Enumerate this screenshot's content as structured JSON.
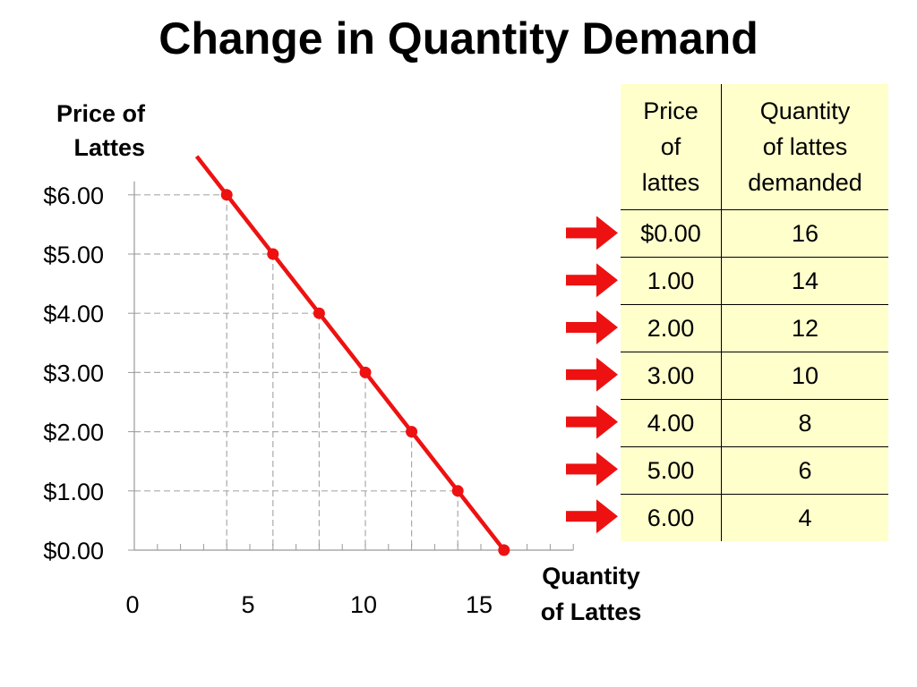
{
  "title": "Change in Quantity Demand",
  "chart_data": {
    "type": "line",
    "ylabel_lines": [
      "Price of",
      "Lattes"
    ],
    "xlabel_lines": [
      "Quantity",
      "of Lattes"
    ],
    "y_ticks": [
      "$0.00",
      "$1.00",
      "$2.00",
      "$3.00",
      "$4.00",
      "$5.00",
      "$6.00"
    ],
    "x_ticks": [
      "0",
      "5",
      "10",
      "15"
    ],
    "xlim": [
      0,
      19
    ],
    "ylim": [
      0,
      6
    ],
    "grid": "dashed guide lines to each point",
    "series": [
      {
        "color": "#ee1111",
        "points": [
          {
            "x": 4,
            "y": 6
          },
          {
            "x": 6,
            "y": 5
          },
          {
            "x": 8,
            "y": 4
          },
          {
            "x": 10,
            "y": 3
          },
          {
            "x": 12,
            "y": 2
          },
          {
            "x": 14,
            "y": 1
          },
          {
            "x": 16,
            "y": 0
          }
        ]
      }
    ]
  },
  "table": {
    "headers": [
      [
        "Price",
        "of",
        "lattes"
      ],
      [
        "Quantity",
        "of lattes",
        "demanded"
      ]
    ],
    "rows": [
      [
        "$0.00",
        "16"
      ],
      [
        "1.00",
        "14"
      ],
      [
        "2.00",
        "12"
      ],
      [
        "3.00",
        "10"
      ],
      [
        "4.00",
        "8"
      ],
      [
        "5.00",
        "6"
      ],
      [
        "6.00",
        "4"
      ]
    ],
    "background": "#ffffcc"
  },
  "arrow_color": "#ee1111"
}
